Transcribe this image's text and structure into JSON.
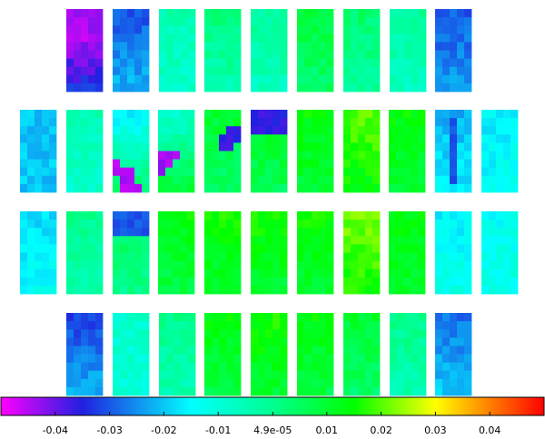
{
  "chart_data": {
    "type": "heatmap",
    "title": "",
    "colormap": {
      "min": -0.05,
      "max": 0.05,
      "stops": [
        {
          "value": -0.05,
          "color": "#ff00ff"
        },
        {
          "value": -0.035,
          "color": "#2020e0"
        },
        {
          "value": -0.015,
          "color": "#00ffff"
        },
        {
          "value": 0.0,
          "color": "#00ff90"
        },
        {
          "value": 0.015,
          "color": "#00ff00"
        },
        {
          "value": 0.03,
          "color": "#ffff00"
        },
        {
          "value": 0.05,
          "color": "#ff0000"
        }
      ]
    },
    "colorbar_ticks": [
      {
        "value": -0.04,
        "label": "-0.04"
      },
      {
        "value": -0.03,
        "label": "-0.03"
      },
      {
        "value": -0.02,
        "label": "-0.02"
      },
      {
        "value": -0.01,
        "label": "-0.01"
      },
      {
        "value": 4.9e-05,
        "label": "4.9e-05"
      },
      {
        "value": 0.01,
        "label": "0.01"
      },
      {
        "value": 0.02,
        "label": "0.02"
      },
      {
        "value": 0.03,
        "label": "0.03"
      },
      {
        "value": 0.04,
        "label": "0.04"
      }
    ],
    "module_rows": [
      [
        {
          "base": -0.034,
          "gradient": -0.016
        },
        {
          "base": -0.022,
          "gradient": -0.008
        },
        {
          "base": -0.008,
          "gradient": 0.004
        },
        {
          "base": -0.004,
          "gradient": 0.006
        },
        {
          "base": -0.006,
          "gradient": 0.004
        },
        {
          "base": 0.004,
          "gradient": 0.004
        },
        {
          "base": -0.002,
          "gradient": 0.006
        },
        {
          "base": -0.006,
          "gradient": 0.004
        },
        {
          "base": -0.024,
          "gradient": -0.006
        }
      ],
      [
        {
          "base": -0.02,
          "gradient": 0.0
        },
        {
          "base": -0.008,
          "gradient": 0.004
        },
        {
          "base": 0.004,
          "gradient": -0.02
        },
        {
          "base": 0.008,
          "gradient": -0.016
        },
        {
          "base": 0.004,
          "gradient": 0.006
        },
        {
          "base": 0.006,
          "gradient": 0.006
        },
        {
          "base": 0.01,
          "gradient": 0.004
        },
        {
          "base": 0.014,
          "gradient": 0.006
        },
        {
          "base": 0.01,
          "gradient": 0.004
        },
        {
          "base": -0.016,
          "gradient": -0.006
        },
        {
          "base": -0.014,
          "gradient": -0.002
        }
      ],
      [
        {
          "base": -0.014,
          "gradient": -0.004
        },
        {
          "base": -0.004,
          "gradient": 0.004
        },
        {
          "base": 0.0,
          "gradient": 0.006
        },
        {
          "base": 0.008,
          "gradient": 0.006
        },
        {
          "base": 0.01,
          "gradient": 0.006
        },
        {
          "base": 0.01,
          "gradient": 0.006
        },
        {
          "base": 0.01,
          "gradient": 0.006
        },
        {
          "base": 0.016,
          "gradient": 0.006
        },
        {
          "base": 0.01,
          "gradient": 0.004
        },
        {
          "base": -0.012,
          "gradient": -0.004
        },
        {
          "base": -0.012,
          "gradient": -0.002
        }
      ],
      [
        {
          "base": -0.022,
          "gradient": -0.01
        },
        {
          "base": -0.01,
          "gradient": 0.002
        },
        {
          "base": -0.004,
          "gradient": 0.004
        },
        {
          "base": 0.008,
          "gradient": 0.006
        },
        {
          "base": 0.01,
          "gradient": 0.006
        },
        {
          "base": 0.008,
          "gradient": 0.006
        },
        {
          "base": 0.004,
          "gradient": 0.006
        },
        {
          "base": -0.004,
          "gradient": 0.004
        },
        {
          "base": -0.02,
          "gradient": -0.008
        }
      ]
    ],
    "highlights": [
      {
        "row": 0,
        "module": 0,
        "region": "top",
        "value": -0.044
      },
      {
        "row": 1,
        "module": 2,
        "region": "bottom-diagonal",
        "value": -0.045
      },
      {
        "row": 1,
        "module": 3,
        "region": "lower-diagonal",
        "value": -0.044
      },
      {
        "row": 1,
        "module": 4,
        "region": "upper-diagonal",
        "value": -0.036
      },
      {
        "row": 1,
        "module": 5,
        "region": "top",
        "value": -0.036
      },
      {
        "row": 1,
        "module": 9,
        "region": "center-column",
        "value": -0.03
      },
      {
        "row": 2,
        "module": 2,
        "region": "top",
        "value": -0.03
      }
    ]
  }
}
